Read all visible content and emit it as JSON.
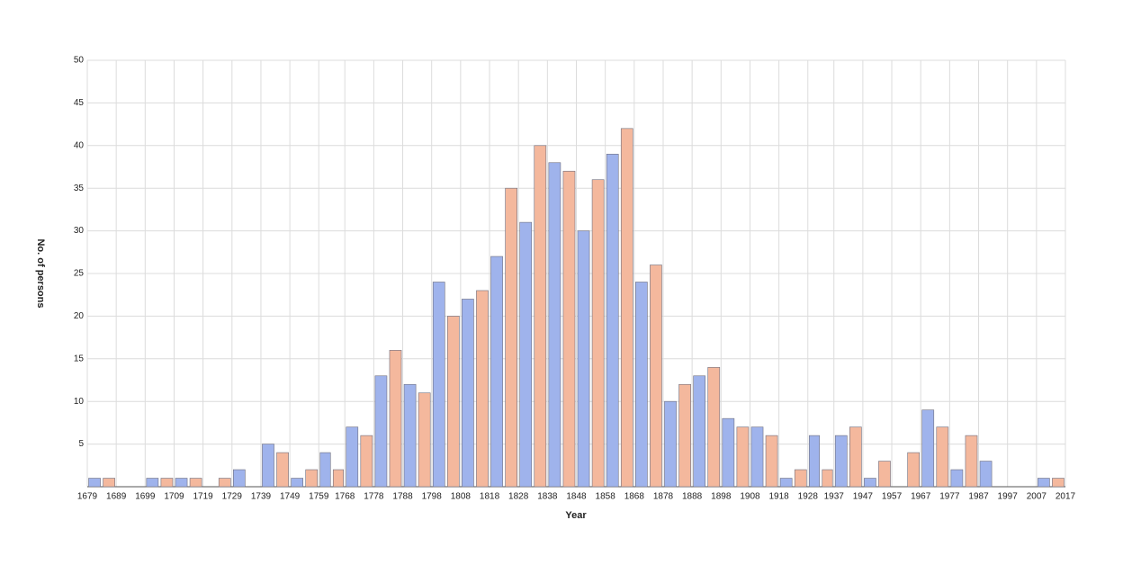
{
  "chart_data": {
    "type": "histogram",
    "x_label": "Year",
    "y_label": "No. of persons",
    "bins": [
      1679,
      1689,
      1699,
      1709,
      1719,
      1729,
      1739,
      1749,
      1759,
      1768,
      1778,
      1788,
      1798,
      1808,
      1818,
      1828,
      1838,
      1848,
      1858,
      1868,
      1878,
      1888,
      1898,
      1908,
      1918,
      1928,
      1937,
      1947,
      1957,
      1967,
      1977,
      1987,
      1997,
      2007,
      2017
    ],
    "series": [
      {
        "color": "#9fb3ec",
        "values": [
          1,
          0,
          1,
          1,
          0,
          2,
          5,
          1,
          4,
          7,
          13,
          12,
          24,
          22,
          27,
          31,
          38,
          30,
          39,
          24,
          10,
          13,
          8,
          7,
          1,
          6,
          6,
          1,
          0,
          9,
          2,
          3,
          0,
          1
        ]
      },
      {
        "color": "#f4b89d",
        "values": [
          1,
          0,
          1,
          1,
          1,
          0,
          4,
          2,
          2,
          6,
          16,
          11,
          20,
          23,
          35,
          40,
          37,
          36,
          42,
          26,
          12,
          14,
          7,
          6,
          2,
          2,
          7,
          3,
          4,
          7,
          6,
          0,
          0,
          1
        ]
      }
    ],
    "xlim": [
      1679,
      2017
    ],
    "ylim": [
      0,
      50
    ],
    "yticks": [
      5,
      10,
      15,
      20,
      25,
      30,
      35,
      40,
      45,
      50
    ],
    "grid": true
  }
}
